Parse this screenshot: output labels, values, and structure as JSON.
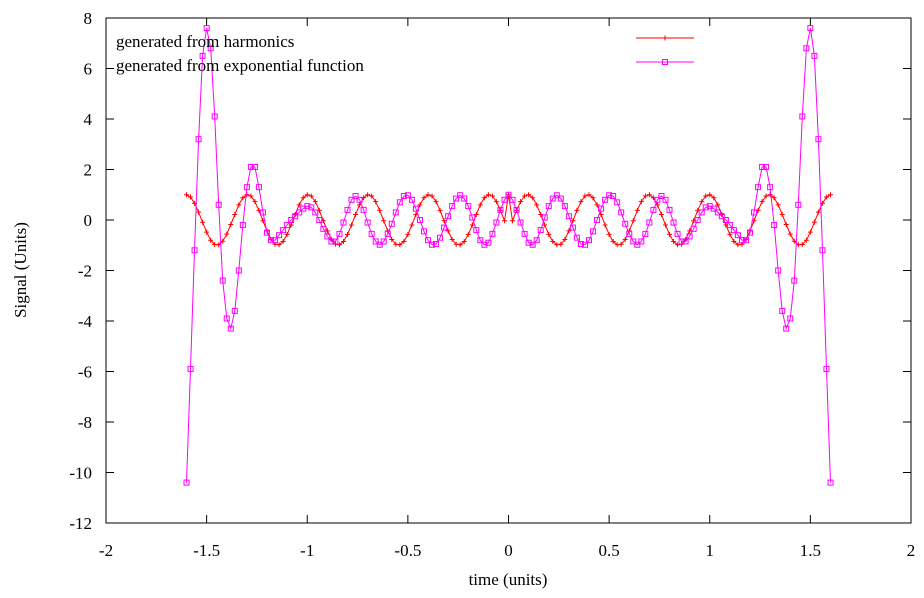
{
  "chart_data": {
    "type": "line",
    "title": "",
    "xlabel": "time (units)",
    "ylabel": "Signal (Units)",
    "xlim": [
      -2,
      2
    ],
    "ylim": [
      -12,
      8
    ],
    "grid": false,
    "legend_position": "top-left",
    "x_ticks": [
      -2,
      -1.5,
      -1,
      -0.5,
      0,
      0.5,
      1,
      1.5,
      2
    ],
    "x_tick_labels": [
      "-2",
      "-1.5",
      "-1",
      "-0.5",
      "0",
      "0.5",
      "1",
      "1.5",
      "2"
    ],
    "y_ticks": [
      -12,
      -10,
      -8,
      -6,
      -4,
      -2,
      0,
      2,
      4,
      6,
      8
    ],
    "y_tick_labels": [
      "-12",
      "-10",
      "-8",
      "-6",
      "-4",
      "-2",
      "0",
      "2",
      "4",
      "6",
      "8"
    ],
    "series": [
      {
        "name": "generated from harmonics",
        "color": "#ff0000",
        "marker": "plus",
        "x": [
          -1.6,
          -1.58,
          -1.56,
          -1.54,
          -1.52,
          -1.5,
          -1.48,
          -1.46,
          -1.44,
          -1.42,
          -1.4,
          -1.38,
          -1.36,
          -1.34,
          -1.32,
          -1.3,
          -1.28,
          -1.26,
          -1.24,
          -1.22,
          -1.2,
          -1.18,
          -1.16,
          -1.14,
          -1.12,
          -1.1,
          -1.08,
          -1.06,
          -1.04,
          -1.02,
          -1.0,
          -0.98,
          -0.96,
          -0.94,
          -0.92,
          -0.9,
          -0.88,
          -0.86,
          -0.84,
          -0.82,
          -0.8,
          -0.78,
          -0.76,
          -0.74,
          -0.72,
          -0.7,
          -0.68,
          -0.66,
          -0.64,
          -0.62,
          -0.6,
          -0.58,
          -0.56,
          -0.54,
          -0.52,
          -0.5,
          -0.48,
          -0.46,
          -0.44,
          -0.42,
          -0.4,
          -0.38,
          -0.36,
          -0.34,
          -0.32,
          -0.3,
          -0.28,
          -0.26,
          -0.24,
          -0.22,
          -0.2,
          -0.18,
          -0.16,
          -0.14,
          -0.12,
          -0.1,
          -0.08,
          -0.06,
          -0.04,
          -0.02,
          0.0,
          0.02,
          0.04,
          0.06,
          0.08,
          0.1,
          0.12,
          0.14,
          0.16,
          0.18,
          0.2,
          0.22,
          0.24,
          0.26,
          0.28,
          0.3,
          0.32,
          0.34,
          0.36,
          0.38,
          0.4,
          0.42,
          0.44,
          0.46,
          0.48,
          0.5,
          0.52,
          0.54,
          0.56,
          0.58,
          0.6,
          0.62,
          0.64,
          0.66,
          0.68,
          0.7,
          0.72,
          0.74,
          0.76,
          0.78,
          0.8,
          0.82,
          0.84,
          0.86,
          0.88,
          0.9,
          0.92,
          0.94,
          0.96,
          0.98,
          1.0,
          1.02,
          1.04,
          1.06,
          1.08,
          1.1,
          1.12,
          1.14,
          1.16,
          1.18,
          1.2,
          1.22,
          1.24,
          1.26,
          1.28,
          1.3,
          1.32,
          1.34,
          1.36,
          1.38,
          1.4,
          1.42,
          1.44,
          1.46,
          1.48,
          1.5,
          1.52,
          1.54,
          1.56,
          1.58,
          1.6
        ],
        "y": [
          1.0,
          0.91,
          0.66,
          0.31,
          -0.09,
          -0.48,
          -0.8,
          -0.97,
          -0.98,
          -0.84,
          -0.56,
          -0.18,
          0.22,
          0.6,
          0.88,
          1.0,
          0.95,
          0.73,
          0.38,
          -0.03,
          -0.43,
          -0.77,
          -0.96,
          -0.98,
          -0.85,
          -0.57,
          -0.2,
          0.22,
          0.6,
          0.88,
          1.0,
          0.95,
          0.73,
          0.38,
          -0.03,
          -0.43,
          -0.77,
          -0.96,
          -0.98,
          -0.85,
          -0.57,
          -0.2,
          0.22,
          0.6,
          0.88,
          1.0,
          0.95,
          0.73,
          0.38,
          -0.03,
          -0.43,
          -0.77,
          -0.96,
          -0.98,
          -0.85,
          -0.57,
          -0.2,
          0.22,
          0.6,
          0.88,
          1.0,
          0.95,
          0.73,
          0.38,
          -0.03,
          -0.43,
          -0.77,
          -0.96,
          -0.98,
          -0.85,
          -0.57,
          -0.2,
          0.22,
          0.6,
          0.88,
          1.0,
          0.95,
          0.73,
          0.38,
          -0.03,
          1.0,
          -0.03,
          0.38,
          0.73,
          0.95,
          1.0,
          0.88,
          0.6,
          0.22,
          -0.2,
          -0.57,
          -0.85,
          -0.98,
          -0.96,
          -0.77,
          -0.43,
          -0.03,
          0.38,
          0.73,
          0.95,
          1.0,
          0.88,
          0.6,
          0.22,
          -0.2,
          -0.57,
          -0.85,
          -0.98,
          -0.96,
          -0.77,
          -0.43,
          -0.03,
          0.38,
          0.73,
          0.95,
          1.0,
          0.88,
          0.6,
          0.22,
          -0.2,
          -0.57,
          -0.85,
          -0.98,
          -0.96,
          -0.77,
          -0.43,
          -0.03,
          0.38,
          0.73,
          0.95,
          1.0,
          0.88,
          0.6,
          0.22,
          -0.2,
          -0.57,
          -0.85,
          -0.98,
          -0.96,
          -0.77,
          -0.43,
          -0.03,
          0.38,
          0.73,
          0.95,
          1.0,
          0.88,
          0.6,
          0.22,
          -0.18,
          -0.56,
          -0.84,
          -0.98,
          -0.97,
          -0.8,
          -0.48,
          -0.09,
          0.31,
          0.66,
          0.91,
          1.0
        ]
      },
      {
        "name": "generated from exponential function",
        "color": "#ff00ff",
        "marker": "square",
        "x": [
          -1.6,
          -1.58,
          -1.56,
          -1.54,
          -1.52,
          -1.5,
          -1.48,
          -1.46,
          -1.44,
          -1.42,
          -1.4,
          -1.38,
          -1.36,
          -1.34,
          -1.32,
          -1.3,
          -1.28,
          -1.26,
          -1.24,
          -1.22,
          -1.2,
          -1.18,
          -1.16,
          -1.14,
          -1.12,
          -1.1,
          -1.08,
          -1.06,
          -1.04,
          -1.02,
          -1.0,
          -0.98,
          -0.96,
          -0.94,
          -0.92,
          -0.9,
          -0.88,
          -0.86,
          -0.84,
          -0.82,
          -0.8,
          -0.78,
          -0.76,
          -0.74,
          -0.72,
          -0.7,
          -0.68,
          -0.66,
          -0.64,
          -0.62,
          -0.6,
          -0.58,
          -0.56,
          -0.54,
          -0.52,
          -0.5,
          -0.48,
          -0.46,
          -0.44,
          -0.42,
          -0.4,
          -0.38,
          -0.36,
          -0.34,
          -0.32,
          -0.3,
          -0.28,
          -0.26,
          -0.24,
          -0.22,
          -0.2,
          -0.18,
          -0.16,
          -0.14,
          -0.12,
          -0.1,
          -0.08,
          -0.06,
          -0.04,
          -0.02,
          0.0,
          0.02,
          0.04,
          0.06,
          0.08,
          0.1,
          0.12,
          0.14,
          0.16,
          0.18,
          0.2,
          0.22,
          0.24,
          0.26,
          0.28,
          0.3,
          0.32,
          0.34,
          0.36,
          0.38,
          0.4,
          0.42,
          0.44,
          0.46,
          0.48,
          0.5,
          0.52,
          0.54,
          0.56,
          0.58,
          0.6,
          0.62,
          0.64,
          0.66,
          0.68,
          0.7,
          0.72,
          0.74,
          0.76,
          0.78,
          0.8,
          0.82,
          0.84,
          0.86,
          0.88,
          0.9,
          0.92,
          0.94,
          0.96,
          0.98,
          1.0,
          1.02,
          1.04,
          1.06,
          1.08,
          1.1,
          1.12,
          1.14,
          1.16,
          1.18,
          1.2,
          1.22,
          1.24,
          1.26,
          1.28,
          1.3,
          1.32,
          1.34,
          1.36,
          1.38,
          1.4,
          1.42,
          1.44,
          1.46,
          1.48,
          1.5,
          1.52,
          1.54,
          1.56,
          1.58,
          1.6
        ],
        "y": [
          -10.4,
          -5.9,
          -1.2,
          3.2,
          6.5,
          7.6,
          6.8,
          4.1,
          0.6,
          -2.4,
          -3.9,
          -4.3,
          -3.6,
          -2.0,
          -0.2,
          1.3,
          2.1,
          2.1,
          1.3,
          0.3,
          -0.5,
          -0.8,
          -0.8,
          -0.6,
          -0.4,
          -0.2,
          0.0,
          0.15,
          0.3,
          0.45,
          0.55,
          0.5,
          0.3,
          0.0,
          -0.35,
          -0.65,
          -0.85,
          -0.85,
          -0.55,
          -0.1,
          0.4,
          0.8,
          0.95,
          0.8,
          0.4,
          -0.1,
          -0.55,
          -0.85,
          -0.98,
          -0.85,
          -0.55,
          -0.15,
          0.3,
          0.7,
          0.95,
          0.98,
          0.8,
          0.45,
          0.0,
          -0.45,
          -0.8,
          -0.98,
          -0.95,
          -0.7,
          -0.3,
          0.15,
          0.55,
          0.85,
          0.98,
          0.85,
          0.55,
          0.1,
          -0.4,
          -0.8,
          -0.98,
          -0.9,
          -0.55,
          -0.1,
          0.4,
          0.8,
          1.0,
          0.8,
          0.4,
          -0.1,
          -0.55,
          -0.9,
          -0.98,
          -0.8,
          -0.4,
          0.1,
          0.55,
          0.85,
          0.98,
          0.85,
          0.55,
          0.15,
          -0.3,
          -0.7,
          -0.95,
          -0.98,
          -0.8,
          -0.45,
          0.0,
          0.45,
          0.8,
          0.98,
          0.95,
          0.7,
          0.3,
          -0.15,
          -0.55,
          -0.85,
          -0.98,
          -0.85,
          -0.55,
          -0.1,
          0.4,
          0.8,
          0.95,
          0.8,
          0.4,
          -0.1,
          -0.55,
          -0.85,
          -0.85,
          -0.65,
          -0.35,
          0.0,
          0.3,
          0.5,
          0.55,
          0.45,
          0.3,
          0.15,
          0.0,
          -0.2,
          -0.4,
          -0.6,
          -0.8,
          -0.8,
          -0.5,
          0.3,
          1.3,
          2.1,
          2.1,
          1.3,
          -0.2,
          -2.0,
          -3.6,
          -4.3,
          -3.9,
          -2.4,
          0.6,
          4.1,
          6.8,
          7.6,
          6.5,
          3.2,
          -1.2,
          -5.9,
          -10.4
        ]
      }
    ]
  }
}
